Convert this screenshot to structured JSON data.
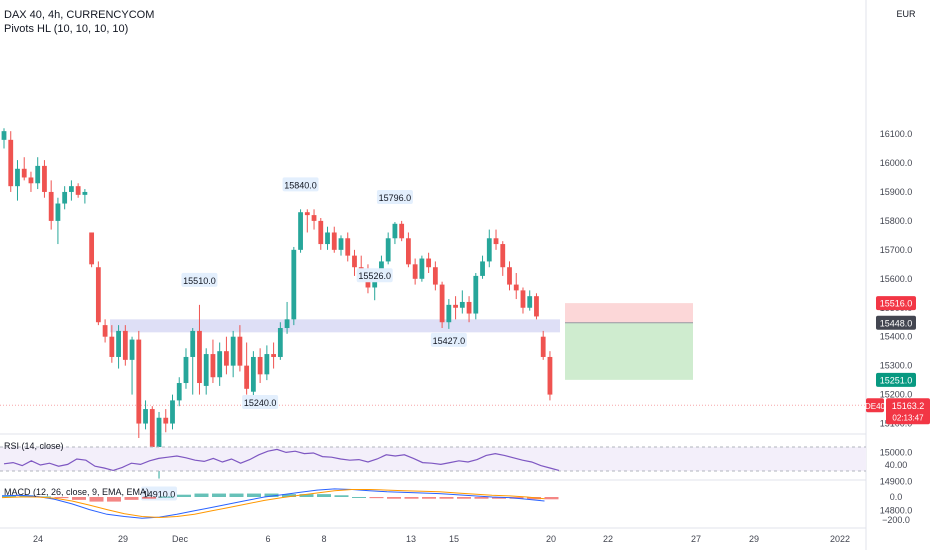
{
  "header": {
    "symbol_line": "DAX 40, 4h, CURRENCYCOM",
    "pivots_indicator": "Pivots HL (10, 10, 10, 10)"
  },
  "price_axis": {
    "currency": "EUR",
    "ticks": [
      16100,
      16000,
      15900,
      15800,
      15700,
      15600,
      15500,
      15400,
      15300,
      15200,
      15100,
      15000,
      14900,
      14800
    ],
    "tick_labels": [
      "16100.0",
      "16000.0",
      "15900.0",
      "15800.0",
      "15700.0",
      "15600.0",
      "15500.0",
      "15400.0",
      "15300.0",
      "15200.0",
      "15100.0",
      "15000.0",
      "14900.0",
      "14800.0"
    ]
  },
  "badges": {
    "stop": {
      "value": 15516.0,
      "text": "15516.0",
      "color": "#f23645"
    },
    "entry": {
      "value": 15448.0,
      "text": "15448.0",
      "color": "#434651"
    },
    "target": {
      "value": 15251.0,
      "text": "15251.0",
      "color": "#089981"
    },
    "last": {
      "value": 15163.2,
      "text": "15163.2",
      "countdown": "02:13:47",
      "symbol": "DE40",
      "color": "#f23645"
    }
  },
  "colors": {
    "up": "#26a69a",
    "down": "#ef5350",
    "zone": "#d8d9f4",
    "rsi_line": "#7e57c2",
    "macd_line": "#2962ff",
    "signal_line": "#ff9800",
    "stop_zone": "#fcd7d8",
    "target_zone": "#cfeccf"
  },
  "time_axis": {
    "labels": [
      "24",
      "29",
      "Dec",
      "6",
      "8",
      "13",
      "15",
      "20",
      "22",
      "27",
      "29",
      "2022"
    ]
  },
  "rsi": {
    "label": "RSI (14, close)",
    "tick_label": "40.00",
    "values": [
      42,
      44,
      39,
      47,
      40,
      43,
      38,
      41,
      50,
      48,
      38,
      35,
      31,
      36,
      43,
      41,
      47,
      51,
      53,
      55,
      52,
      48,
      46,
      51,
      45,
      50,
      43,
      49,
      57,
      63,
      66,
      61,
      63,
      59,
      60,
      54,
      53,
      50,
      48,
      49,
      45,
      50,
      57,
      55,
      57,
      51,
      44,
      43,
      41,
      44,
      47,
      45,
      49,
      56,
      59,
      56,
      52,
      48,
      45,
      39,
      35,
      31
    ]
  },
  "macd": {
    "label": "MACD (12, 26, close, 9, EMA, EMA)",
    "tick_labels": [
      "0.0",
      "−200.0"
    ],
    "macd_values": [
      10,
      15,
      5,
      -20,
      -60,
      -110,
      -150,
      -170,
      -185,
      -175,
      -150,
      -120,
      -90,
      -60,
      -30,
      0,
      20,
      40,
      60,
      70,
      65,
      55,
      45,
      40,
      35,
      30,
      20,
      10,
      0,
      -5,
      -20,
      -35
    ],
    "signal_values": [
      -5,
      0,
      0,
      -10,
      -35,
      -70,
      -110,
      -145,
      -170,
      -178,
      -170,
      -150,
      -120,
      -90,
      -60,
      -30,
      -5,
      15,
      35,
      55,
      65,
      65,
      60,
      55,
      50,
      45,
      35,
      25,
      15,
      10,
      0,
      -15
    ],
    "histogram": [
      15,
      15,
      5,
      -10,
      -25,
      -40,
      -40,
      -25,
      -15,
      3,
      20,
      30,
      30,
      30,
      30,
      30,
      25,
      25,
      25,
      15,
      0,
      -10,
      -15,
      -15,
      -15,
      -15,
      -15,
      -15,
      -15,
      -15,
      -20,
      -20
    ]
  },
  "chart_data": {
    "type": "candlestick",
    "title": "DAX 40, 4h, CURRENCYCOM",
    "ylim": [
      14700,
      16150
    ],
    "candles": [
      [
        16080,
        16120,
        16050,
        16110
      ],
      [
        16080,
        16110,
        15900,
        15920
      ],
      [
        15920,
        16010,
        15870,
        15980
      ],
      [
        15980,
        16020,
        15940,
        15950
      ],
      [
        15950,
        15970,
        15900,
        15930
      ],
      [
        15930,
        16020,
        15910,
        15990
      ],
      [
        15990,
        16010,
        15880,
        15900
      ],
      [
        15900,
        15940,
        15770,
        15800
      ],
      [
        15800,
        15880,
        15720,
        15860
      ],
      [
        15860,
        15920,
        15840,
        15900
      ],
      [
        15900,
        15940,
        15870,
        15920
      ],
      [
        15920,
        15930,
        15880,
        15890
      ],
      [
        15890,
        15910,
        15860,
        15900
      ],
      [
        15760,
        15760,
        15640,
        15650
      ],
      [
        15640,
        15660,
        15440,
        15450
      ],
      [
        15440,
        15460,
        15380,
        15400
      ],
      [
        15400,
        15440,
        15310,
        15330
      ],
      [
        15330,
        15440,
        15290,
        15420
      ],
      [
        15420,
        15440,
        15300,
        15320
      ],
      [
        15320,
        15400,
        15200,
        15390
      ],
      [
        15390,
        15420,
        15050,
        15100
      ],
      [
        15100,
        15180,
        15080,
        15150
      ],
      [
        15150,
        15160,
        14970,
        15010
      ],
      [
        14990,
        15140,
        14910,
        15120
      ],
      [
        15120,
        15150,
        15070,
        15100
      ],
      [
        15100,
        15200,
        15080,
        15180
      ],
      [
        15180,
        15260,
        15160,
        15240
      ],
      [
        15240,
        15360,
        15220,
        15330
      ],
      [
        15330,
        15430,
        15200,
        15420
      ],
      [
        15420,
        15510,
        15200,
        15240
      ],
      [
        15230,
        15360,
        15200,
        15340
      ],
      [
        15340,
        15390,
        15240,
        15260
      ],
      [
        15260,
        15380,
        15230,
        15350
      ],
      [
        15350,
        15400,
        15270,
        15300
      ],
      [
        15300,
        15420,
        15260,
        15400
      ],
      [
        15400,
        15440,
        15280,
        15300
      ],
      [
        15300,
        15380,
        15200,
        15220
      ],
      [
        15210,
        15350,
        15190,
        15330
      ],
      [
        15330,
        15360,
        15240,
        15270
      ],
      [
        15270,
        15370,
        15250,
        15340
      ],
      [
        15340,
        15380,
        15290,
        15330
      ],
      [
        15330,
        15450,
        15320,
        15430
      ],
      [
        15430,
        15520,
        15410,
        15460
      ],
      [
        15460,
        15710,
        15440,
        15700
      ],
      [
        15700,
        15840,
        15690,
        15830
      ],
      [
        15830,
        15840,
        15760,
        15820
      ],
      [
        15820,
        15840,
        15770,
        15800
      ],
      [
        15800,
        15810,
        15700,
        15720
      ],
      [
        15720,
        15780,
        15700,
        15760
      ],
      [
        15760,
        15780,
        15690,
        15700
      ],
      [
        15700,
        15750,
        15680,
        15740
      ],
      [
        15740,
        15760,
        15660,
        15680
      ],
      [
        15680,
        15700,
        15610,
        15640
      ],
      [
        15640,
        15680,
        15600,
        15620
      ],
      [
        15620,
        15650,
        15550,
        15570
      ],
      [
        15570,
        15610,
        15526,
        15600
      ],
      [
        15600,
        15680,
        15590,
        15660
      ],
      [
        15660,
        15760,
        15650,
        15740
      ],
      [
        15740,
        15796,
        15720,
        15790
      ],
      [
        15790,
        15800,
        15730,
        15740
      ],
      [
        15740,
        15760,
        15640,
        15650
      ],
      [
        15650,
        15670,
        15580,
        15600
      ],
      [
        15600,
        15680,
        15590,
        15670
      ],
      [
        15670,
        15690,
        15620,
        15640
      ],
      [
        15640,
        15660,
        15560,
        15580
      ],
      [
        15580,
        15590,
        15430,
        15450
      ],
      [
        15450,
        15530,
        15427,
        15510
      ],
      [
        15510,
        15540,
        15460,
        15500
      ],
      [
        15500,
        15560,
        15480,
        15520
      ],
      [
        15520,
        15540,
        15450,
        15480
      ],
      [
        15480,
        15620,
        15460,
        15610
      ],
      [
        15610,
        15680,
        15600,
        15660
      ],
      [
        15660,
        15770,
        15640,
        15740
      ],
      [
        15740,
        15770,
        15700,
        15720
      ],
      [
        15720,
        15730,
        15610,
        15640
      ],
      [
        15640,
        15660,
        15560,
        15580
      ],
      [
        15580,
        15620,
        15530,
        15560
      ],
      [
        15560,
        15570,
        15480,
        15500
      ],
      [
        15500,
        15560,
        15490,
        15540
      ],
      [
        15540,
        15550,
        15460,
        15470
      ],
      [
        15400,
        15420,
        15320,
        15330
      ],
      [
        15330,
        15350,
        15180,
        15200
      ]
    ]
  }
}
